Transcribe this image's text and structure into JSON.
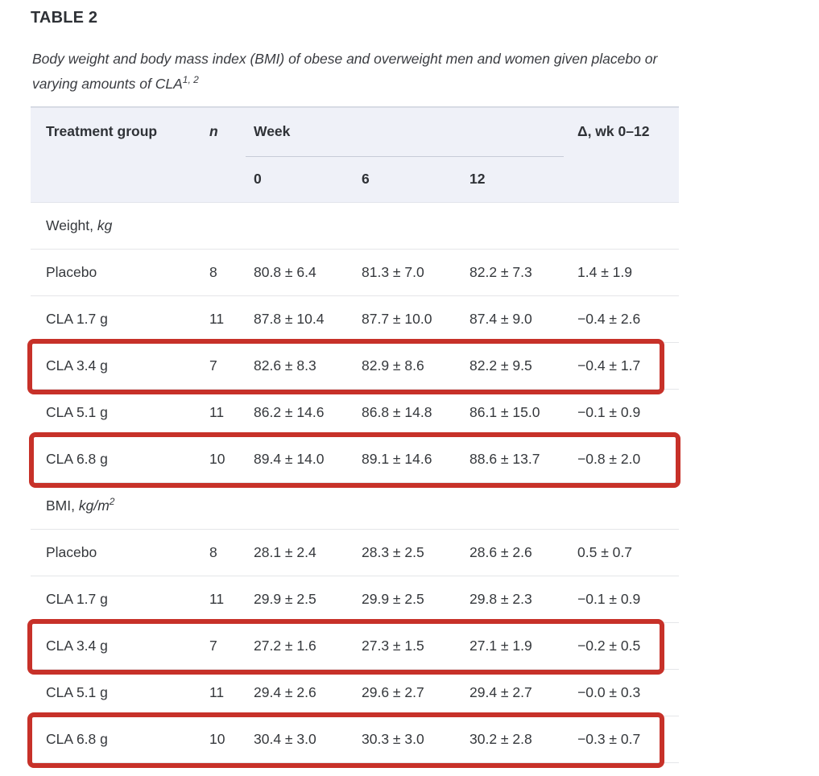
{
  "page": {
    "title": "TABLE 2",
    "caption_line1": "Body weight and body mass index (BMI) of obese and overweight men and women given placebo or",
    "caption_line2": "varying amounts of CLA",
    "caption_sup": "1, 2"
  },
  "table": {
    "headers": {
      "treatment_group": "Treatment group",
      "n": "n",
      "week": "Week",
      "delta": "Δ, wk 0–12",
      "week_cols": [
        "0",
        "6",
        "12"
      ]
    },
    "sections": [
      {
        "label": "Weight,",
        "unit": "kg",
        "unit_sup": "",
        "rows": [
          {
            "group": "Placebo",
            "n": "8",
            "wk0": "80.8 ± 6.4",
            "wk6": "81.3 ± 7.0",
            "wk12": "82.2 ± 7.3",
            "delta": "1.4 ± 1.9",
            "highlighted": false
          },
          {
            "group": "CLA 1.7 g",
            "n": "11",
            "wk0": "87.8 ± 10.4",
            "wk6": "87.7 ± 10.0",
            "wk12": "87.4 ± 9.0",
            "delta": "−0.4 ± 2.6",
            "highlighted": false
          },
          {
            "group": "CLA 3.4 g",
            "n": "7",
            "wk0": "82.6 ± 8.3",
            "wk6": "82.9 ± 8.6",
            "wk12": "82.2 ± 9.5",
            "delta": "−0.4 ± 1.7",
            "highlighted": true
          },
          {
            "group": "CLA 5.1 g",
            "n": "11",
            "wk0": "86.2 ± 14.6",
            "wk6": "86.8 ± 14.8",
            "wk12": "86.1 ± 15.0",
            "delta": "−0.1 ± 0.9",
            "highlighted": false
          },
          {
            "group": "CLA 6.8 g",
            "n": "10",
            "wk0": "89.4 ± 14.0",
            "wk6": "89.1 ± 14.6",
            "wk12": "88.6 ± 13.7",
            "delta": "−0.8 ± 2.0",
            "highlighted": true,
            "highlight_full_width": true
          }
        ]
      },
      {
        "label": "BMI,",
        "unit": "kg/m",
        "unit_sup": "2",
        "rows": [
          {
            "group": "Placebo",
            "n": "8",
            "wk0": "28.1 ± 2.4",
            "wk6": "28.3 ± 2.5",
            "wk12": "28.6 ± 2.6",
            "delta": "0.5 ± 0.7",
            "highlighted": false
          },
          {
            "group": "CLA 1.7 g",
            "n": "11",
            "wk0": "29.9 ± 2.5",
            "wk6": "29.9 ± 2.5",
            "wk12": "29.8 ± 2.3",
            "delta": "−0.1 ± 0.9",
            "highlighted": false
          },
          {
            "group": "CLA 3.4 g",
            "n": "7",
            "wk0": "27.2 ± 1.6",
            "wk6": "27.3 ± 1.5",
            "wk12": "27.1 ± 1.9",
            "delta": "−0.2 ± 0.5",
            "highlighted": true
          },
          {
            "group": "CLA 5.1 g",
            "n": "11",
            "wk0": "29.4 ± 2.6",
            "wk6": "29.6 ± 2.7",
            "wk12": "29.4 ± 2.7",
            "delta": "−0.0 ± 0.3",
            "highlighted": false
          },
          {
            "group": "CLA 6.8 g",
            "n": "10",
            "wk0": "30.4 ± 3.0",
            "wk6": "30.3 ± 3.0",
            "wk12": "30.2 ± 2.8",
            "delta": "−0.3 ± 0.7",
            "highlighted": true
          }
        ]
      }
    ]
  },
  "colors": {
    "highlight_border": "#c73129",
    "header_background": "#eff1f8",
    "row_divider": "#e5e6e9",
    "text": "#35383c"
  }
}
